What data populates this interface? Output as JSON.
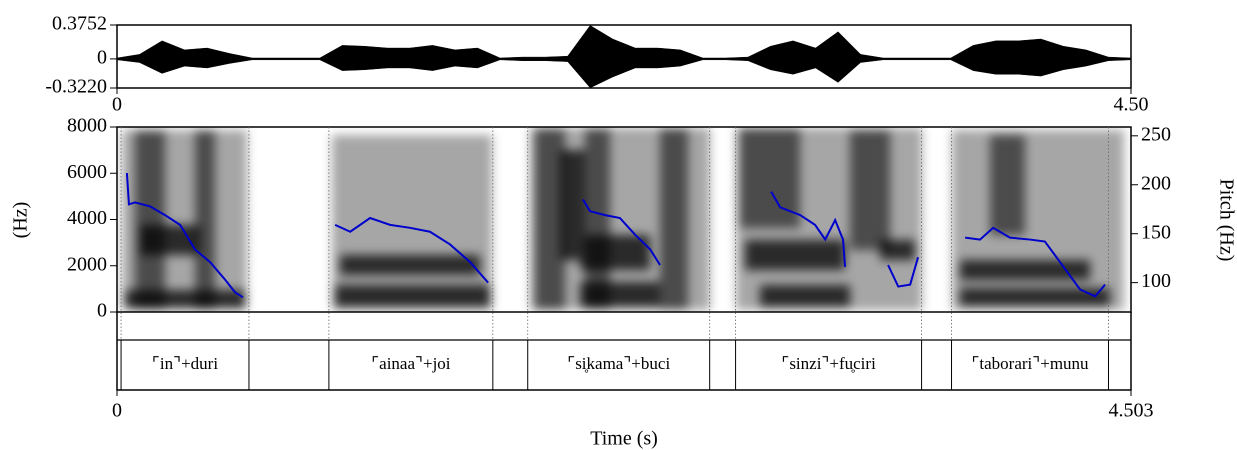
{
  "chart_data": [
    {
      "type": "waveform",
      "xlim": [
        0,
        4.5
      ],
      "xticks": [
        0,
        {
          "value": 4.5,
          "label": "4.50"
        }
      ],
      "ylim": [
        -0.322,
        0.3752
      ],
      "yticks": [
        {
          "value": 0.3752,
          "label": "0.3752"
        },
        0,
        {
          "value": -0.322,
          "label": "-0.3220"
        }
      ],
      "x": [
        0,
        0.1,
        0.2,
        0.3,
        0.4,
        0.5,
        0.6,
        0.7,
        0.8,
        0.9,
        1.0,
        1.1,
        1.2,
        1.3,
        1.4,
        1.5,
        1.6,
        1.7,
        1.8,
        1.9,
        2.0,
        2.1,
        2.2,
        2.3,
        2.4,
        2.5,
        2.6,
        2.7,
        2.8,
        2.9,
        3.0,
        3.1,
        3.2,
        3.3,
        3.4,
        3.5,
        3.6,
        3.7,
        3.8,
        3.9,
        4.0,
        4.1,
        4.2,
        4.3,
        4.4,
        4.5
      ],
      "values": [
        0.01,
        0.05,
        0.2,
        0.1,
        0.12,
        0.06,
        0.01,
        0.01,
        0.01,
        0.01,
        0.15,
        0.14,
        0.12,
        0.12,
        0.15,
        0.1,
        0.12,
        0.01,
        0.02,
        0.02,
        0.03,
        0.37,
        0.22,
        0.12,
        0.12,
        0.1,
        0.01,
        0.01,
        0.02,
        0.14,
        0.2,
        0.12,
        0.3,
        0.05,
        0.01,
        0.01,
        0.01,
        0.01,
        0.15,
        0.2,
        0.2,
        0.22,
        0.14,
        0.1,
        0.02,
        0.01
      ],
      "lower": [
        -0.01,
        -0.04,
        -0.16,
        -0.08,
        -0.1,
        -0.05,
        -0.01,
        -0.01,
        -0.01,
        -0.01,
        -0.13,
        -0.12,
        -0.1,
        -0.1,
        -0.13,
        -0.08,
        -0.1,
        -0.01,
        -0.02,
        -0.02,
        -0.03,
        -0.32,
        -0.2,
        -0.1,
        -0.1,
        -0.08,
        -0.01,
        -0.01,
        -0.02,
        -0.12,
        -0.17,
        -0.1,
        -0.26,
        -0.04,
        -0.01,
        -0.01,
        -0.01,
        -0.01,
        -0.13,
        -0.17,
        -0.17,
        -0.19,
        -0.12,
        -0.08,
        -0.02,
        -0.01
      ],
      "color": "#000000"
    },
    {
      "type": "spectrogram",
      "xlim": [
        0,
        4.5
      ],
      "ylabel": "(Hz)",
      "ylim": [
        0,
        8000
      ],
      "yticks": [
        0,
        2000,
        4000,
        6000,
        8000
      ],
      "y2label": "Pitch (Hz)",
      "y2lim": [
        70,
        259
      ],
      "y2ticks": [
        100,
        150,
        200,
        250
      ],
      "x": [
        0.044,
        0.053,
        0.08,
        0.146,
        0.213,
        0.28,
        0.346,
        0.413,
        0.48,
        0.524,
        0.559,
        null,
        0.968,
        1.035,
        1.123,
        1.212,
        1.3,
        1.389,
        1.478,
        1.567,
        1.647,
        null,
        2.068,
        2.099,
        2.166,
        2.232,
        2.299,
        2.366,
        2.41,
        null,
        2.903,
        2.943,
        3.032,
        3.098,
        3.143,
        3.187,
        3.222,
        3.231,
        null,
        3.422,
        3.467,
        3.52,
        3.555,
        null,
        3.764,
        3.83,
        3.888,
        3.963,
        4.052,
        4.118,
        4.185,
        4.274,
        4.341,
        4.385
      ],
      "values": [
        212,
        180,
        182,
        178,
        169,
        159,
        134,
        121,
        103,
        90,
        85,
        null,
        159,
        152,
        166,
        159,
        156,
        152,
        139,
        121,
        100,
        null,
        185,
        173,
        169,
        166,
        149,
        134,
        118,
        null,
        193,
        177,
        169,
        159,
        144,
        164,
        144,
        116,
        null,
        118,
        96,
        98,
        126,
        null,
        146,
        144,
        156,
        146,
        144,
        142,
        121,
        93,
        86,
        98
      ],
      "axis": "y2",
      "color": "#0000cc"
    },
    {
      "type": "textgrid",
      "xlim": [
        0,
        4.503
      ],
      "xticks": [
        0,
        4.503
      ],
      "xlabel": "Time (s)",
      "boundaries": [
        0.018,
        0.586,
        0.941,
        1.669,
        1.824,
        2.632,
        2.747,
        3.573,
        3.706,
        4.403
      ],
      "labels": [
        null,
        "⌜in⌝+duri",
        null,
        "⌜ainaa⌝+joi",
        null,
        "⌜si̥kama⌝+buci",
        null,
        "⌜sinzi⌝+fu̥ciri",
        null,
        "⌜taborari⌝+munu",
        null
      ]
    }
  ]
}
